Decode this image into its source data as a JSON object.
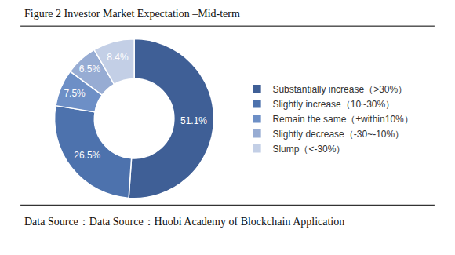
{
  "chart_data": {
    "type": "donut",
    "title": "Figure 2 Investor Market Expectation –Mid-term",
    "source": "Data Source：Data Source：Huobi Academy of Blockchain Application",
    "categories": [
      "Substantially increase（>30%）",
      "Slightly increase（10~30%）",
      "Remain the same（±within10%）",
      "Slightly decrease（-30~-10%）",
      "Slump（<-30%）"
    ],
    "values": [
      51.1,
      26.5,
      7.5,
      6.5,
      8.4
    ],
    "value_labels": [
      "51.1%",
      "26.5%",
      "7.5%",
      "6.5%",
      "8.4%"
    ],
    "colors": [
      "#3f5f96",
      "#4d72ad",
      "#6d8fc6",
      "#97acd3",
      "#c3cfe6"
    ],
    "data_labels": true,
    "legend": "right"
  }
}
